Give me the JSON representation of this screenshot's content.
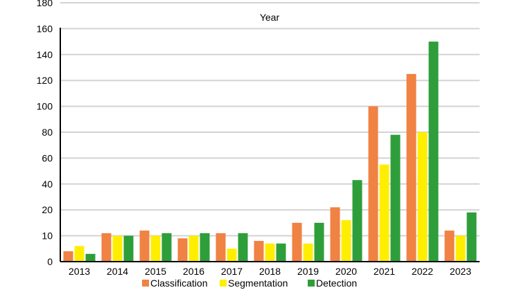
{
  "chart_data": {
    "type": "bar",
    "title": "Year",
    "categories": [
      "2013",
      "2014",
      "2015",
      "2016",
      "2017",
      "2018",
      "2019",
      "2020",
      "2021",
      "2022",
      "2023"
    ],
    "series": [
      {
        "name": "Classification",
        "color": "#f08243",
        "values": [
          4,
          11,
          12,
          9,
          11,
          8,
          15,
          22,
          100,
          125,
          12
        ]
      },
      {
        "name": "Segmentation",
        "color": "#ffee00",
        "values": [
          6,
          10,
          10,
          10,
          5,
          7,
          7,
          16,
          55,
          80,
          10
        ]
      },
      {
        "name": "Detection",
        "color": "#2e9e3a",
        "values": [
          3,
          10,
          11,
          11,
          11,
          7,
          15,
          43,
          78,
          150,
          19
        ]
      }
    ],
    "y_ticks": [
      "0",
      "10",
      "20",
      "40",
      "60",
      "80",
      "100",
      "120",
      "140",
      "160",
      "180"
    ],
    "legend_position": "bottom",
    "grid": true
  }
}
